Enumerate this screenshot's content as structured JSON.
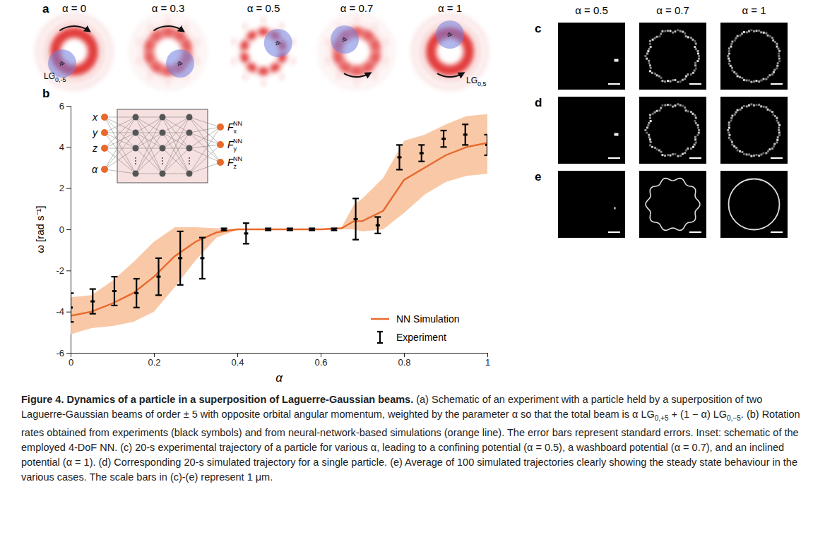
{
  "panel_a": {
    "label": "a",
    "titles": [
      "α = 0",
      "α = 0.3",
      "α = 0.5",
      "α = 0.7",
      "α = 1"
    ],
    "beam_labels": [
      {
        "text": "LG",
        "sub": "0,-5"
      },
      {
        "text": "LG",
        "sub": "0,5"
      }
    ]
  },
  "chart_data": {
    "type": "line",
    "panel_label": "b",
    "x_label": "α",
    "y_label": "ω [rad s⁻¹]",
    "xlim": [
      0,
      1
    ],
    "ylim": [
      -6,
      6
    ],
    "xticks": [
      0,
      0.2,
      0.4,
      0.6,
      0.8,
      1
    ],
    "yticks": [
      -6,
      -4,
      -2,
      0,
      2,
      4,
      6
    ],
    "legend": "lower right",
    "series": [
      {
        "name": "NN Simulation",
        "type": "line",
        "color": "#e8692c",
        "band_color": "#f8bf98",
        "x": [
          0,
          0.05,
          0.1,
          0.15,
          0.2,
          0.25,
          0.3,
          0.35,
          0.4,
          0.45,
          0.5,
          0.55,
          0.6,
          0.65,
          0.68,
          0.7,
          0.75,
          0.8,
          0.85,
          0.9,
          0.95,
          1
        ],
        "values": [
          -4.2,
          -4.0,
          -3.6,
          -3.1,
          -2.3,
          -1.3,
          -0.6,
          -0.15,
          0,
          0,
          0,
          0,
          0,
          0.05,
          0.4,
          0.4,
          0.9,
          2.4,
          3.0,
          3.6,
          4.0,
          4.2
        ],
        "band_upper": [
          -3.3,
          -3.2,
          -2.5,
          -1.6,
          -0.6,
          0.1,
          0.1,
          0.05,
          0.02,
          0.02,
          0.02,
          0.02,
          0.02,
          0.1,
          1.2,
          1.5,
          2.5,
          4.3,
          4.6,
          5.1,
          5.5,
          5.6
        ],
        "band_lower": [
          -5.1,
          -4.8,
          -4.7,
          -4.5,
          -4.0,
          -2.8,
          -1.5,
          -0.4,
          -0.02,
          -0.02,
          -0.02,
          -0.02,
          -0.02,
          0,
          0,
          -0.1,
          0,
          0.8,
          1.7,
          2.3,
          2.6,
          2.7
        ]
      },
      {
        "name": "Experiment",
        "type": "scatter",
        "color": "#000000",
        "x": [
          0,
          0.053,
          0.105,
          0.158,
          0.211,
          0.263,
          0.316,
          0.368,
          0.421,
          0.474,
          0.526,
          0.579,
          0.632,
          0.684,
          0.737,
          0.789,
          0.842,
          0.895,
          0.947,
          1
        ],
        "values": [
          -3.8,
          -3.5,
          -3.0,
          -3.1,
          -2.3,
          -1.4,
          -1.4,
          0,
          -0.2,
          0,
          0,
          0,
          0,
          0.5,
          0.2,
          3.5,
          3.7,
          4.4,
          4.6,
          4.1
        ],
        "errors": [
          0.7,
          0.6,
          0.7,
          0.7,
          0.9,
          1.3,
          1.0,
          0.05,
          0.5,
          0.05,
          0.05,
          0.05,
          0.05,
          1.0,
          0.4,
          0.6,
          0.4,
          0.4,
          0.5,
          0.5
        ]
      }
    ]
  },
  "panel_b_inset": {
    "inputs": [
      "x",
      "y",
      "z",
      "α"
    ],
    "outputs": [
      {
        "symbol": "F",
        "sub": "x",
        "sup": "NN"
      },
      {
        "symbol": "F",
        "sub": "y",
        "sup": "NN"
      },
      {
        "symbol": "F",
        "sub": "z",
        "sup": "NN"
      }
    ]
  },
  "panels_cde": {
    "column_titles": [
      "α = 0.5",
      "α = 0.7",
      "α = 1"
    ],
    "row_labels": [
      "c",
      "d",
      "e"
    ]
  },
  "caption": [
    {
      "text": "Figure 4. Dynamics of a particle in a superposition of Laguerre-Gaussian beams.",
      "bold": true
    },
    {
      "text": " (a) Schematic of an experiment with a particle held by a superposition of two Laguerre-Gaussian beams of order ± 5 with opposite orbital angular momentum, weighted by the parameter α so that the total beam is α LG"
    },
    {
      "sub": "0,+5"
    },
    {
      "text": " + (1 − α) LG"
    },
    {
      "sub": "0,−5"
    },
    {
      "text": ". (b) Rotation rates obtained from experiments (black symbols) and from neural-network-based simulations (orange line). The error bars represent standard errors. Inset: schematic of the employed 4-DoF NN. (c) 20-s experimental trajectory of a particle for various α, leading to a confining potential (α = 0.5), a washboard potential (α = 0.7), and an inclined potential (α = 1). (d) Corresponding 20-s simulated trajectory for a single particle. (e) Average of 100 simulated trajectories clearly showing the steady state behaviour in the various cases. The scale bars in (c)-(e) represent 1 μm."
    }
  ]
}
